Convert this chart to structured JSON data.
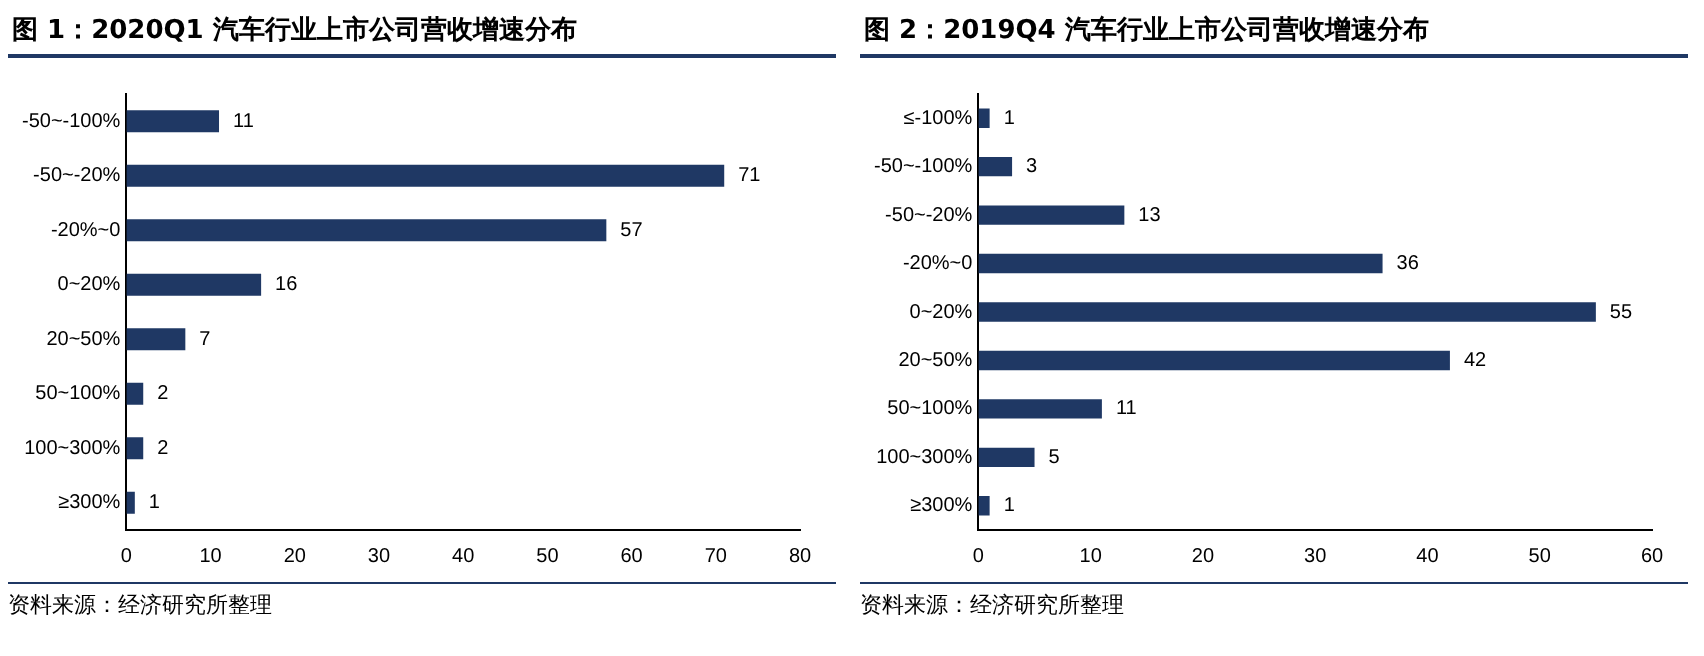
{
  "chart_data": [
    {
      "type": "bar",
      "orientation": "horizontal",
      "title": "图 1：2020Q1 汽车行业上市公司营收增速分布",
      "categories": [
        "-50~-100%",
        "-50~-20%",
        "-20%~0",
        "0~20%",
        "20~50%",
        "50~100%",
        "100~300%",
        "≥300%"
      ],
      "values": [
        11,
        71,
        57,
        16,
        7,
        2,
        2,
        1
      ],
      "color": "#1f3864",
      "xlim": [
        0,
        80
      ],
      "xticks": [
        0,
        10,
        20,
        30,
        40,
        50,
        60,
        70,
        80
      ],
      "data_labels": true,
      "grid": false,
      "legend": false,
      "annotations": [
        "资料来源：经济研究所整理"
      ]
    },
    {
      "type": "bar",
      "orientation": "horizontal",
      "title": "图 2：2019Q4 汽车行业上市公司营收增速分布",
      "categories": [
        "≤-100%",
        "-50~-100%",
        "-50~-20%",
        "-20%~0",
        "0~20%",
        "20~50%",
        "50~100%",
        "100~300%",
        "≥300%"
      ],
      "values": [
        1,
        3,
        13,
        36,
        55,
        42,
        11,
        5,
        1
      ],
      "color": "#1f3864",
      "xlim": [
        0,
        60
      ],
      "xticks": [
        0,
        10,
        20,
        30,
        40,
        50,
        60
      ],
      "data_labels": true,
      "grid": false,
      "legend": false,
      "annotations": [
        "资料来源：经济研究所整理"
      ]
    }
  ]
}
